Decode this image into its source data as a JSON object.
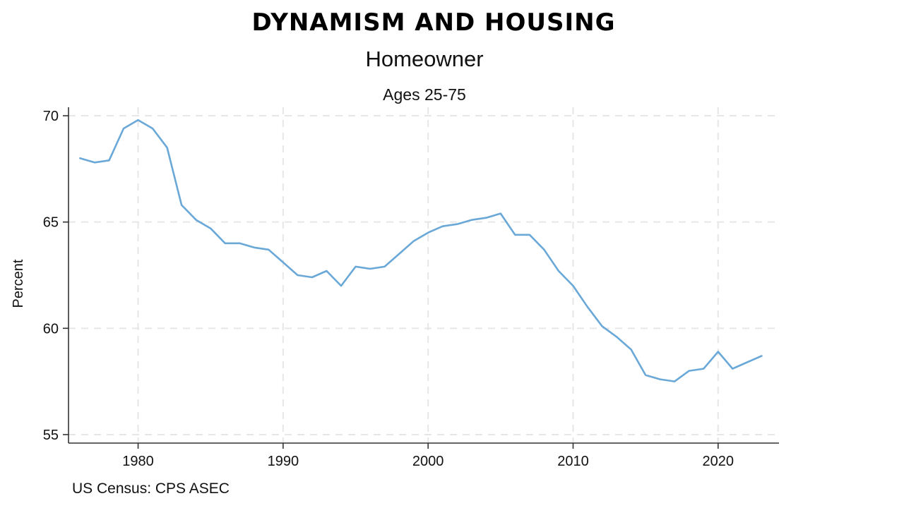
{
  "banner": {
    "title": "DYNAMISM AND HOUSING"
  },
  "chart_data": {
    "type": "line",
    "title": "Homeowner",
    "subtitle": "Ages 25-75",
    "xlabel": "",
    "ylabel": "Percent",
    "xlim": [
      1975.2,
      2024.2
    ],
    "ylim": [
      54.6,
      70.4
    ],
    "xticks": [
      1980,
      1990,
      2000,
      2010,
      2020
    ],
    "yticks": [
      55,
      60,
      65,
      70
    ],
    "grid": true,
    "legend": "none",
    "line_color": "#6aa8d8",
    "series": [
      {
        "x": [
          1976,
          1977,
          1978,
          1979,
          1980,
          1981,
          1982,
          1983,
          1984,
          1985,
          1986,
          1987,
          1988,
          1989,
          1990,
          1991,
          1992,
          1993,
          1994,
          1995,
          1996,
          1997,
          1998,
          1999,
          2000,
          2001,
          2002,
          2003,
          2004,
          2005,
          2006,
          2007,
          2008,
          2009,
          2010,
          2011,
          2012,
          2013,
          2014,
          2015,
          2016,
          2017,
          2018,
          2019,
          2020,
          2021,
          2022,
          2023
        ],
        "y": [
          68.0,
          67.8,
          67.9,
          69.4,
          69.8,
          69.4,
          68.5,
          65.8,
          65.1,
          64.7,
          64.0,
          64.0,
          63.8,
          63.7,
          63.1,
          62.5,
          62.4,
          62.7,
          62.0,
          62.9,
          62.8,
          62.9,
          63.5,
          64.1,
          64.5,
          64.8,
          64.9,
          65.1,
          65.2,
          65.4,
          64.4,
          64.4,
          63.7,
          62.7,
          62.0,
          61.0,
          60.1,
          59.6,
          59.0,
          57.8,
          57.6,
          57.5,
          58.0,
          58.1,
          58.9,
          58.1,
          58.4,
          58.7
        ]
      }
    ],
    "source": "US Census: CPS ASEC"
  }
}
